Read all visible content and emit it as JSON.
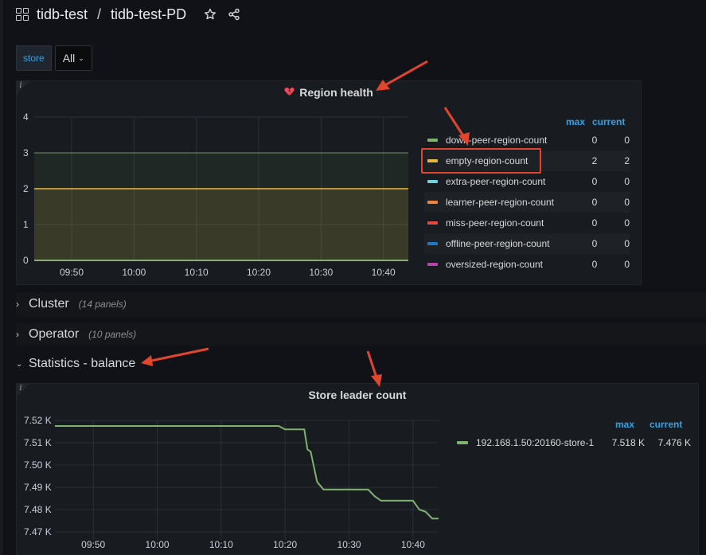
{
  "breadcrumb": {
    "folder": "tidb-test",
    "separator": "/",
    "dashboard": "tidb-test-PD"
  },
  "variables": {
    "store_label": "store",
    "store_value": "All"
  },
  "rows": [
    {
      "title": "Cluster",
      "count": "(14 panels)",
      "collapsed": true
    },
    {
      "title": "Operator",
      "count": "(10 panels)",
      "collapsed": true
    },
    {
      "title": "Statistics - balance",
      "count": "",
      "collapsed": false
    }
  ],
  "colors": {
    "accent": "#33a2e5",
    "highlight": "#e0452e"
  },
  "chart_data": [
    {
      "type": "line",
      "title": "Region health",
      "xlabel": "",
      "ylabel": "",
      "x": [
        "09:50",
        "10:00",
        "10:10",
        "10:20",
        "10:30",
        "10:40"
      ],
      "ylim": [
        0,
        4
      ],
      "yticks": [
        "0",
        "1",
        "2",
        "3",
        "4"
      ],
      "legend_headers": {
        "max": "max",
        "current": "current"
      },
      "series": [
        {
          "name": "down-peer-region-count",
          "color": "#7eb26d",
          "value": 0,
          "max": "0",
          "current": "0"
        },
        {
          "name": "empty-region-count",
          "color": "#eab839",
          "value": 2,
          "max": "2",
          "current": "2"
        },
        {
          "name": "extra-peer-region-count",
          "color": "#6ed0e0",
          "value": 0,
          "max": "0",
          "current": "0"
        },
        {
          "name": "learner-peer-region-count",
          "color": "#ef843c",
          "value": 0,
          "max": "0",
          "current": "0"
        },
        {
          "name": "miss-peer-region-count",
          "color": "#e24d42",
          "value": 0,
          "max": "0",
          "current": "0"
        },
        {
          "name": "offline-peer-region-count",
          "color": "#1f78c1",
          "value": 0,
          "max": "0",
          "current": "0"
        },
        {
          "name": "oversized-region-count",
          "color": "#ba43a9",
          "value": 0,
          "max": "0",
          "current": "0"
        }
      ],
      "thresholds": [
        3
      ],
      "grid": true
    },
    {
      "type": "line",
      "title": "Store leader count",
      "xlabel": "",
      "ylabel": "",
      "x": [
        "09:50",
        "10:00",
        "10:10",
        "10:20",
        "10:30",
        "10:40"
      ],
      "yticks": [
        "7.47 K",
        "7.48 K",
        "7.49 K",
        "7.50 K",
        "7.51 K",
        "7.52 K"
      ],
      "ylim": [
        7470,
        7520
      ],
      "legend_headers": {
        "max": "max",
        "current": "current"
      },
      "series": [
        {
          "name": "192.168.1.50:20160-store-1",
          "color": "#7eb26d",
          "max": "7.518 K",
          "current": "7.476 K",
          "points": [
            [
              "09:44",
              7517.5
            ],
            [
              "10:19",
              7517.5
            ],
            [
              "10:20",
              7516
            ],
            [
              "10:23",
              7516
            ],
            [
              "10:23.5",
              7507
            ],
            [
              "10:24",
              7506
            ],
            [
              "10:25",
              7492.5
            ],
            [
              "10:26",
              7489
            ],
            [
              "10:33",
              7489
            ],
            [
              "10:34",
              7486
            ],
            [
              "10:35",
              7484
            ],
            [
              "10:40",
              7484
            ],
            [
              "10:41",
              7480
            ],
            [
              "10:42",
              7479
            ],
            [
              "10:43",
              7476
            ],
            [
              "10:44",
              7476
            ]
          ]
        }
      ],
      "grid": true
    }
  ]
}
